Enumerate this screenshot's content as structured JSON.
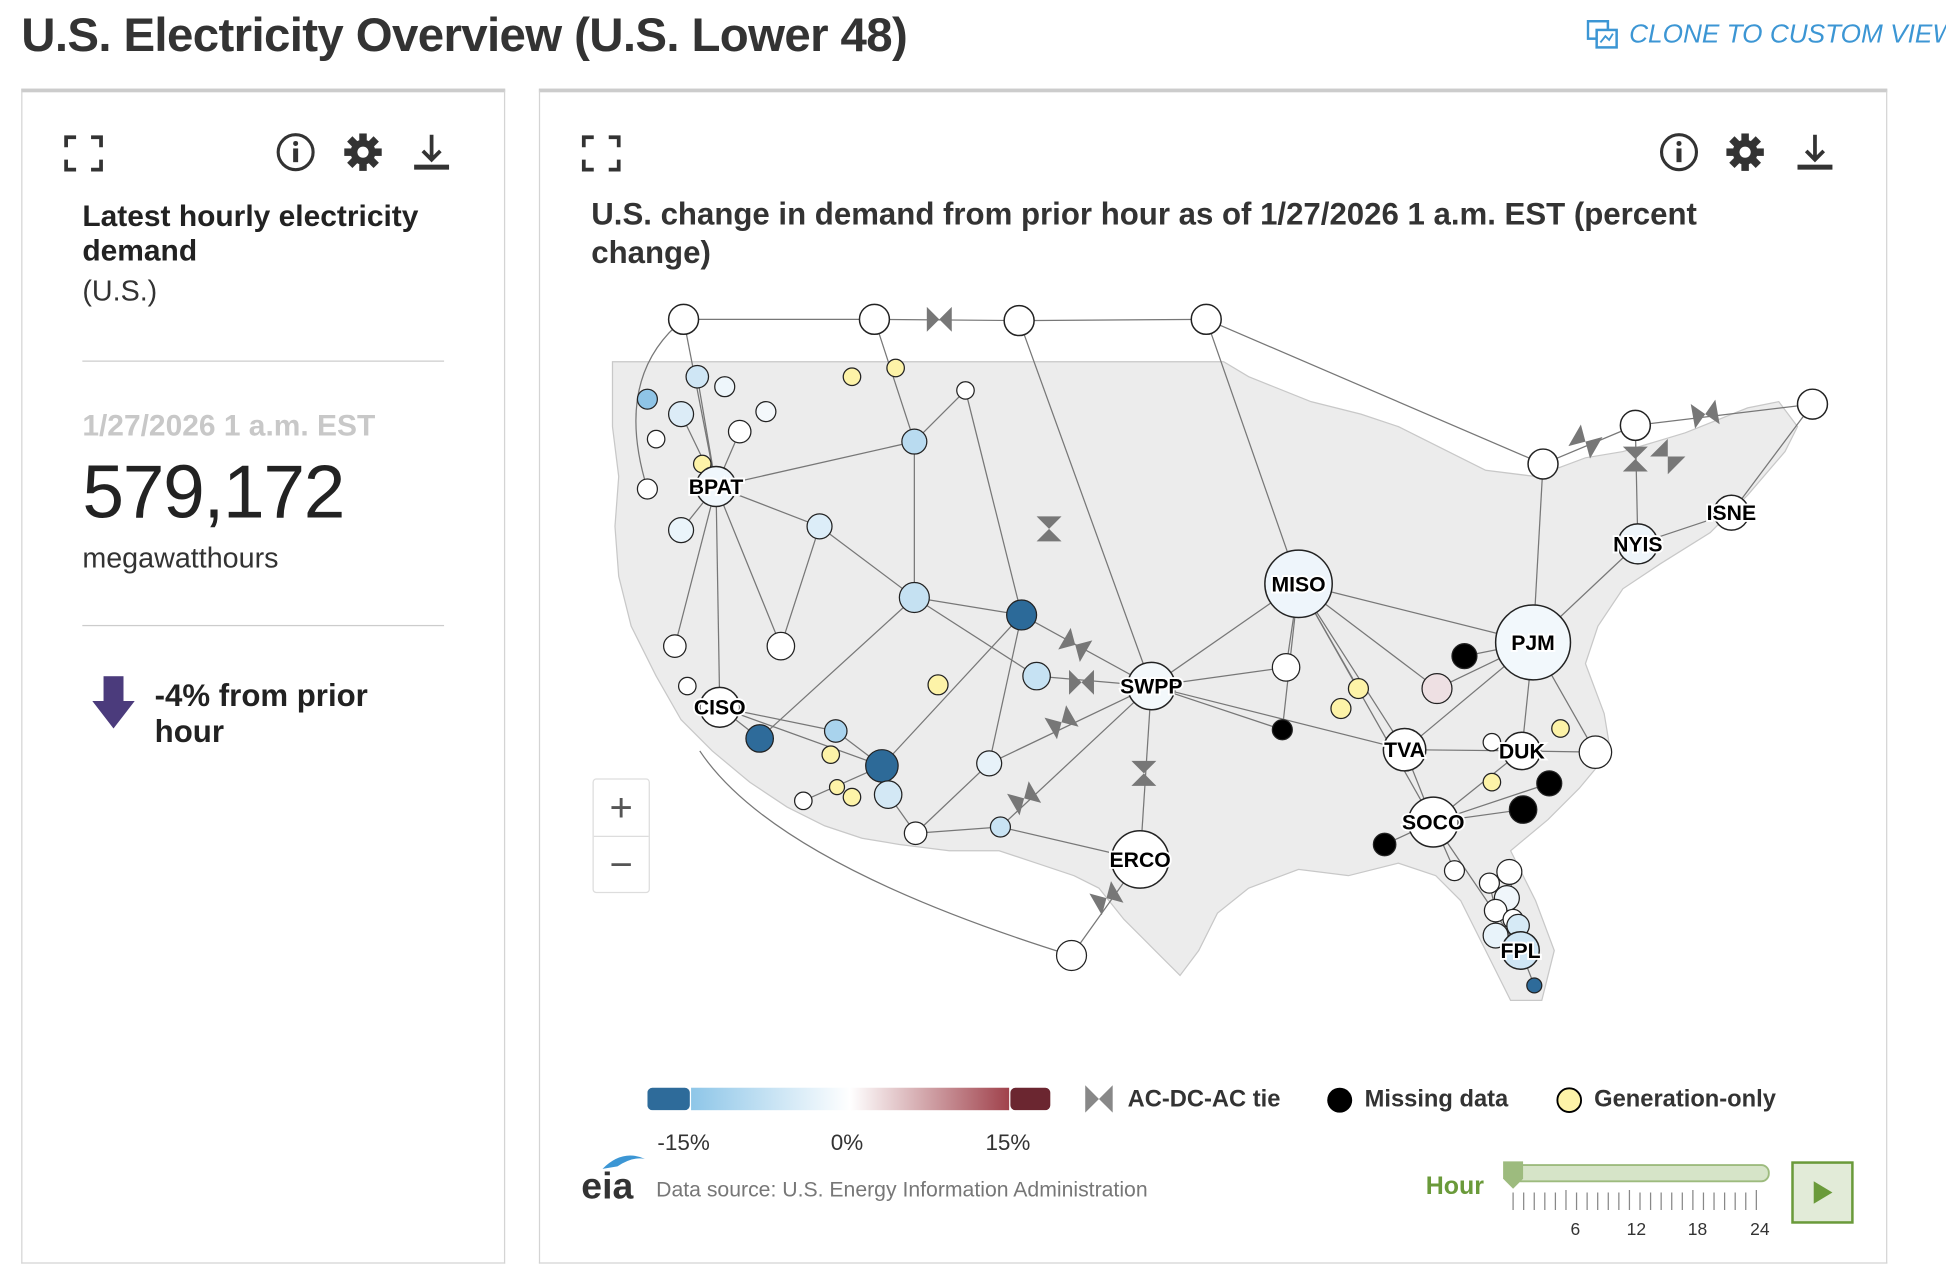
{
  "page": {
    "title": "U.S. Electricity Overview (U.S. Lower 48)",
    "clone_label": "CLONE TO CUSTOM VIEW",
    "accent_color": "#3c96d4"
  },
  "kpi_panel": {
    "title": "Latest hourly electricity demand",
    "subtitle": "(U.S.)",
    "timestamp": "1/27/2026 1 a.m. EST",
    "value": "579,172",
    "unit": "megawatthours",
    "change_text": "-4% from prior hour",
    "change_direction": "down",
    "arrow_color": "#4b3b7c"
  },
  "map_panel": {
    "title": "U.S. change in demand from prior hour as of 1/27/2026 1 a.m. EST (percent change)",
    "zoom_in": "+",
    "zoom_out": "−",
    "legend": {
      "scale_ticks": [
        "-15%",
        "0%",
        "15%"
      ],
      "scale_colors": {
        "low_end": "#2e6b9a",
        "low": "#8ec6e8",
        "mid": "#ffffff",
        "high": "#a0424c",
        "high_end": "#6b2630"
      },
      "tie_label": "AC-DC-AC tie",
      "missing_label": "Missing data",
      "generation_label": "Generation-only",
      "missing_color": "#000000",
      "generation_color": "#fdf3a8"
    },
    "source": "Data source: U.S. Energy Information Administration",
    "logo_text": "eia",
    "hour_slider": {
      "label": "Hour",
      "value": 1,
      "max": 24,
      "ticks": [
        "6",
        "12",
        "18",
        "24"
      ],
      "color": "#6a9a3a"
    },
    "nodes": [
      {
        "id": "n1",
        "label": "",
        "color": "#ffffff"
      },
      {
        "id": "n2",
        "label": "",
        "color": "#ffffff"
      },
      {
        "id": "n3",
        "label": "",
        "color": "#ffffff"
      },
      {
        "id": "n4",
        "label": "",
        "color": "#ffffff"
      },
      {
        "id": "n5",
        "label": "",
        "color": "#ffffff"
      },
      {
        "id": "n6",
        "label": "",
        "color": "#ffffff"
      },
      {
        "id": "n7",
        "label": "",
        "color": "#ffffff"
      },
      {
        "id": "BPAT",
        "label": "BPAT",
        "color": "#f0f7fc"
      },
      {
        "id": "CISO",
        "label": "CISO",
        "color": "#ffffff"
      },
      {
        "id": "SWPP",
        "label": "SWPP",
        "color": "#f3f8fb"
      },
      {
        "id": "ERCO",
        "label": "ERCO",
        "color": "#ffffff"
      },
      {
        "id": "MISO",
        "label": "MISO",
        "color": "#eef5fb"
      },
      {
        "id": "PJM",
        "label": "PJM",
        "color": "#f2f8fc"
      },
      {
        "id": "NYIS",
        "label": "NYIS",
        "color": "#eef5fa"
      },
      {
        "id": "ISNE",
        "label": "ISNE",
        "color": "#ffffff"
      },
      {
        "id": "TVA",
        "label": "TVA",
        "color": "#ffffff"
      },
      {
        "id": "DUK",
        "label": "DUK",
        "color": "#ffffff"
      },
      {
        "id": "SOCO",
        "label": "SOCO",
        "color": "#ffffff"
      },
      {
        "id": "FPL",
        "label": "FPL",
        "color": "#cfe6f5"
      }
    ]
  }
}
